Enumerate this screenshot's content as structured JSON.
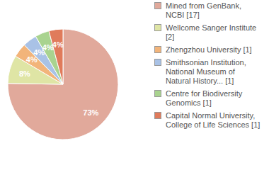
{
  "chart_data": {
    "type": "pie",
    "categories": [
      "Mined from GenBank, NCBI [17]",
      "Wellcome Sanger Institute [2]",
      "Zhengzhou University [1]",
      "Smithsonian Institution, National Museum of Natural History... [1]",
      "Centre for Biodiversity Genomics [1]",
      "Capital Normal University, College of Life Sciences [1]"
    ],
    "values": [
      73,
      8,
      4,
      4,
      4,
      4
    ],
    "value_labels": [
      "73%",
      "8%",
      "4%",
      "4%",
      "4%",
      "4%"
    ],
    "colors": [
      "#e1a99b",
      "#dfe5a5",
      "#f2b47a",
      "#a9c2e6",
      "#a9d38f",
      "#e07b5b"
    ],
    "data_labels": true
  }
}
